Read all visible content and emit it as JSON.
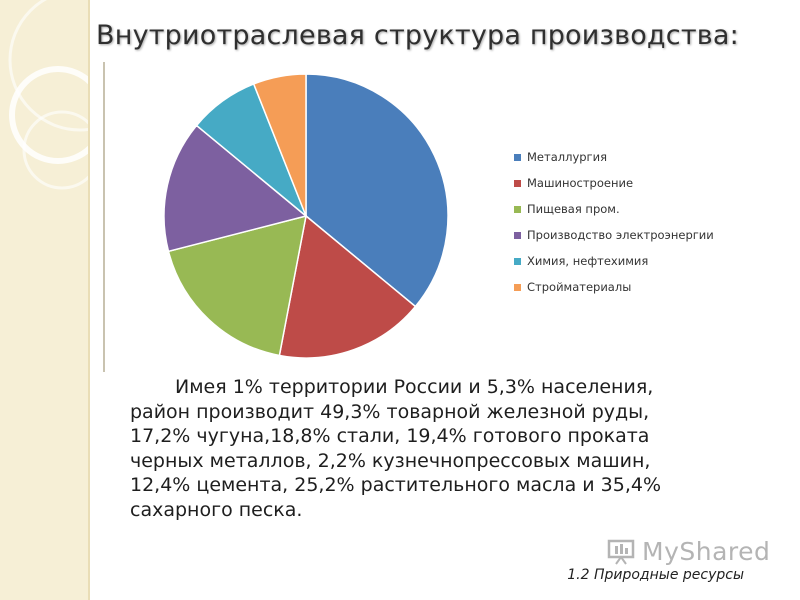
{
  "slide": {
    "title": "Внутриотраслевая структура производства:",
    "body_lines": [
      "Имея 1% территории России и 5,3% населения,",
      "район производит 49,3% товарной железной руды,",
      "17,2% чугуна,18,8% стали, 19,4% готового проката",
      "черных металлов, 2,2% кузнечнопрессовых машин,",
      "12,4% цемента, 25,2% растительного масла и 35,4%",
      "сахарного песка."
    ],
    "footer": "1.2 Природные ресурсы",
    "watermark": "MyShared"
  },
  "chart_data": {
    "type": "pie",
    "title": "",
    "legend_position": "right",
    "slices": [
      {
        "label": "Металлургия",
        "value": 36,
        "color": "#4a7ebb"
      },
      {
        "label": "Машиностроение",
        "value": 17,
        "color": "#be4b48"
      },
      {
        "label": "Пищевая пром.",
        "value": 18,
        "color": "#98b954"
      },
      {
        "label": "Производство электроэнергии",
        "value": 15,
        "color": "#7d60a0"
      },
      {
        "label": "Химия, нефтехимия",
        "value": 8,
        "color": "#46aac5"
      },
      {
        "label": "Стройматериалы",
        "value": 6,
        "color": "#f59d56"
      }
    ]
  }
}
